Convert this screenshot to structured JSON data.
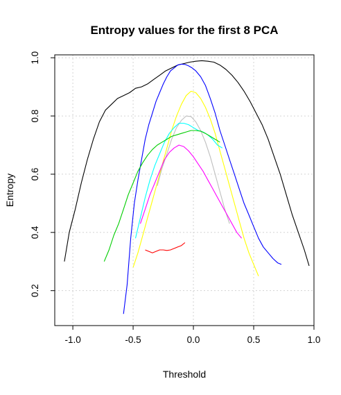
{
  "chart_data": {
    "type": "line",
    "title": "Entropy values for the first 8 PCA",
    "xlabel": "Threshold",
    "ylabel": "Entropy",
    "xlim": [
      -1.15,
      1.0
    ],
    "ylim": [
      0.08,
      1.01
    ],
    "xticks": [
      -1.0,
      -0.5,
      0.0,
      0.5,
      1.0
    ],
    "xtick_labels": [
      "-1.0",
      "-0.5",
      "0.0",
      "0.5",
      "1.0"
    ],
    "yticks": [
      0.2,
      0.4,
      0.6,
      0.8,
      1.0
    ],
    "ytick_labels": [
      "0.2",
      "0.4",
      "0.6",
      "0.8",
      "1.0"
    ],
    "grid": true,
    "series": [
      {
        "color": "#000000",
        "x": [
          -1.07,
          -1.03,
          -0.98,
          -0.93,
          -0.88,
          -0.83,
          -0.78,
          -0.73,
          -0.68,
          -0.63,
          -0.58,
          -0.53,
          -0.48,
          -0.43,
          -0.38,
          -0.33,
          -0.28,
          -0.23,
          -0.18,
          -0.13,
          -0.08,
          -0.03,
          0.02,
          0.07,
          0.12,
          0.17,
          0.22,
          0.27,
          0.32,
          0.37,
          0.42,
          0.47,
          0.52,
          0.57,
          0.62,
          0.67,
          0.72,
          0.77,
          0.82,
          0.87,
          0.92,
          0.96
        ],
        "y": [
          0.3,
          0.4,
          0.48,
          0.57,
          0.65,
          0.72,
          0.78,
          0.82,
          0.84,
          0.86,
          0.87,
          0.88,
          0.895,
          0.9,
          0.91,
          0.925,
          0.94,
          0.955,
          0.965,
          0.975,
          0.98,
          0.985,
          0.988,
          0.99,
          0.988,
          0.985,
          0.975,
          0.96,
          0.94,
          0.915,
          0.885,
          0.85,
          0.81,
          0.77,
          0.72,
          0.66,
          0.6,
          0.53,
          0.46,
          0.4,
          0.34,
          0.285
        ]
      },
      {
        "color": "#0000ff",
        "x": [
          -0.58,
          -0.55,
          -0.52,
          -0.49,
          -0.46,
          -0.43,
          -0.4,
          -0.37,
          -0.34,
          -0.31,
          -0.28,
          -0.25,
          -0.22,
          -0.19,
          -0.16,
          -0.13,
          -0.1,
          -0.07,
          -0.04,
          -0.01,
          0.02,
          0.06,
          0.1,
          0.14,
          0.18,
          0.22,
          0.26,
          0.3,
          0.34,
          0.38,
          0.42,
          0.46,
          0.5,
          0.54,
          0.58,
          0.62,
          0.66,
          0.7,
          0.73
        ],
        "y": [
          0.12,
          0.22,
          0.38,
          0.5,
          0.58,
          0.65,
          0.72,
          0.77,
          0.81,
          0.85,
          0.88,
          0.91,
          0.935,
          0.955,
          0.965,
          0.975,
          0.978,
          0.977,
          0.972,
          0.965,
          0.955,
          0.935,
          0.905,
          0.86,
          0.81,
          0.75,
          0.7,
          0.65,
          0.6,
          0.55,
          0.5,
          0.46,
          0.42,
          0.38,
          0.35,
          0.33,
          0.31,
          0.295,
          0.29
        ]
      },
      {
        "color": "#ffff00",
        "x": [
          -0.5,
          -0.46,
          -0.42,
          -0.38,
          -0.34,
          -0.3,
          -0.26,
          -0.22,
          -0.18,
          -0.14,
          -0.1,
          -0.06,
          -0.02,
          0.02,
          0.06,
          0.1,
          0.14,
          0.18,
          0.22,
          0.26,
          0.3,
          0.34,
          0.38,
          0.42,
          0.46,
          0.5,
          0.54
        ],
        "y": [
          0.28,
          0.33,
          0.39,
          0.45,
          0.51,
          0.57,
          0.63,
          0.69,
          0.75,
          0.8,
          0.84,
          0.87,
          0.885,
          0.88,
          0.86,
          0.83,
          0.79,
          0.74,
          0.68,
          0.62,
          0.56,
          0.5,
          0.44,
          0.38,
          0.33,
          0.29,
          0.25
        ]
      },
      {
        "color": "#bebebe",
        "x": [
          -0.3,
          -0.26,
          -0.22,
          -0.18,
          -0.14,
          -0.1,
          -0.06,
          -0.02,
          0.02,
          0.06,
          0.1,
          0.14,
          0.18,
          0.22,
          0.26,
          0.3
        ],
        "y": [
          0.56,
          0.62,
          0.67,
          0.72,
          0.76,
          0.785,
          0.8,
          0.798,
          0.78,
          0.75,
          0.71,
          0.66,
          0.6,
          0.54,
          0.48,
          0.43
        ]
      },
      {
        "color": "#00ffff",
        "x": [
          -0.48,
          -0.44,
          -0.4,
          -0.36,
          -0.32,
          -0.28,
          -0.24,
          -0.2,
          -0.16,
          -0.12,
          -0.08,
          -0.04,
          0.0,
          0.04,
          0.08,
          0.12,
          0.16,
          0.2,
          0.24
        ],
        "y": [
          0.38,
          0.45,
          0.52,
          0.58,
          0.63,
          0.67,
          0.71,
          0.74,
          0.76,
          0.775,
          0.775,
          0.77,
          0.76,
          0.75,
          0.745,
          0.735,
          0.72,
          0.7,
          0.69
        ]
      },
      {
        "color": "#00cd00",
        "x": [
          -0.74,
          -0.7,
          -0.66,
          -0.62,
          -0.58,
          -0.54,
          -0.5,
          -0.46,
          -0.42,
          -0.38,
          -0.34,
          -0.3,
          -0.26,
          -0.22,
          -0.18,
          -0.14,
          -0.1,
          -0.06,
          -0.02,
          0.02,
          0.06,
          0.1,
          0.14,
          0.18,
          0.22
        ],
        "y": [
          0.3,
          0.34,
          0.39,
          0.43,
          0.48,
          0.53,
          0.57,
          0.61,
          0.64,
          0.665,
          0.685,
          0.7,
          0.71,
          0.72,
          0.73,
          0.735,
          0.74,
          0.745,
          0.75,
          0.75,
          0.748,
          0.74,
          0.73,
          0.72,
          0.71
        ]
      },
      {
        "color": "#ff00ff",
        "x": [
          -0.44,
          -0.4,
          -0.36,
          -0.32,
          -0.28,
          -0.24,
          -0.2,
          -0.16,
          -0.12,
          -0.08,
          -0.04,
          0.0,
          0.04,
          0.08,
          0.12,
          0.16,
          0.2,
          0.24,
          0.28,
          0.32,
          0.36,
          0.4
        ],
        "y": [
          0.43,
          0.48,
          0.53,
          0.57,
          0.61,
          0.65,
          0.675,
          0.69,
          0.7,
          0.695,
          0.68,
          0.66,
          0.635,
          0.61,
          0.58,
          0.55,
          0.52,
          0.49,
          0.46,
          0.43,
          0.4,
          0.38
        ]
      },
      {
        "color": "#ff0000",
        "x": [
          -0.4,
          -0.37,
          -0.34,
          -0.31,
          -0.28,
          -0.25,
          -0.22,
          -0.19,
          -0.16,
          -0.13,
          -0.1,
          -0.07
        ],
        "y": [
          0.34,
          0.335,
          0.33,
          0.335,
          0.34,
          0.34,
          0.338,
          0.34,
          0.345,
          0.35,
          0.355,
          0.365
        ]
      }
    ]
  }
}
